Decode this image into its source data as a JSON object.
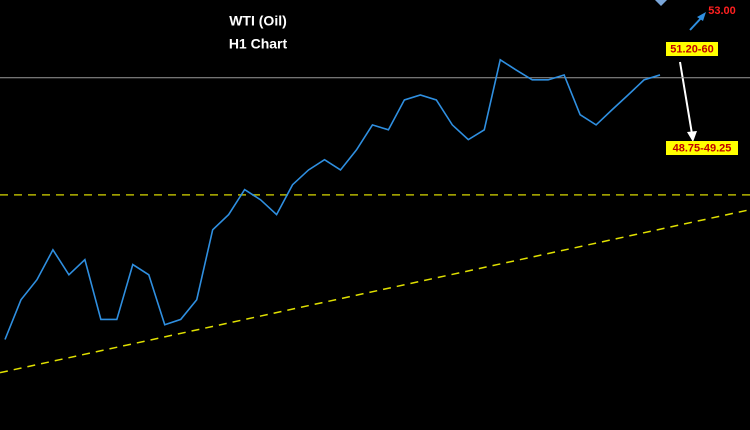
{
  "chart_data": {
    "type": "line",
    "title": "WTI (Oil)",
    "subtitle": "H1 Chart",
    "values": [
      44.31,
      45.28,
      45.77,
      46.5,
      45.89,
      46.26,
      44.8,
      44.8,
      46.14,
      45.89,
      44.67,
      44.8,
      45.28,
      46.99,
      47.36,
      47.97,
      47.72,
      47.36,
      48.09,
      48.45,
      48.7,
      48.45,
      48.94,
      49.55,
      49.43,
      50.16,
      50.28,
      50.16,
      49.55,
      49.19,
      49.43,
      51.14,
      50.89,
      50.65,
      50.65,
      50.77,
      49.8,
      49.55,
      49.92,
      50.28,
      50.65,
      50.77
    ],
    "color": "#2f8fe0",
    "ylim": [
      42.1,
      52.6
    ],
    "resistance": 50.7,
    "support": 47.84,
    "trendline": [
      43.5,
      47.48
    ],
    "annotations": [
      "53.00",
      "51.20-60",
      "48.75-49.25"
    ]
  }
}
